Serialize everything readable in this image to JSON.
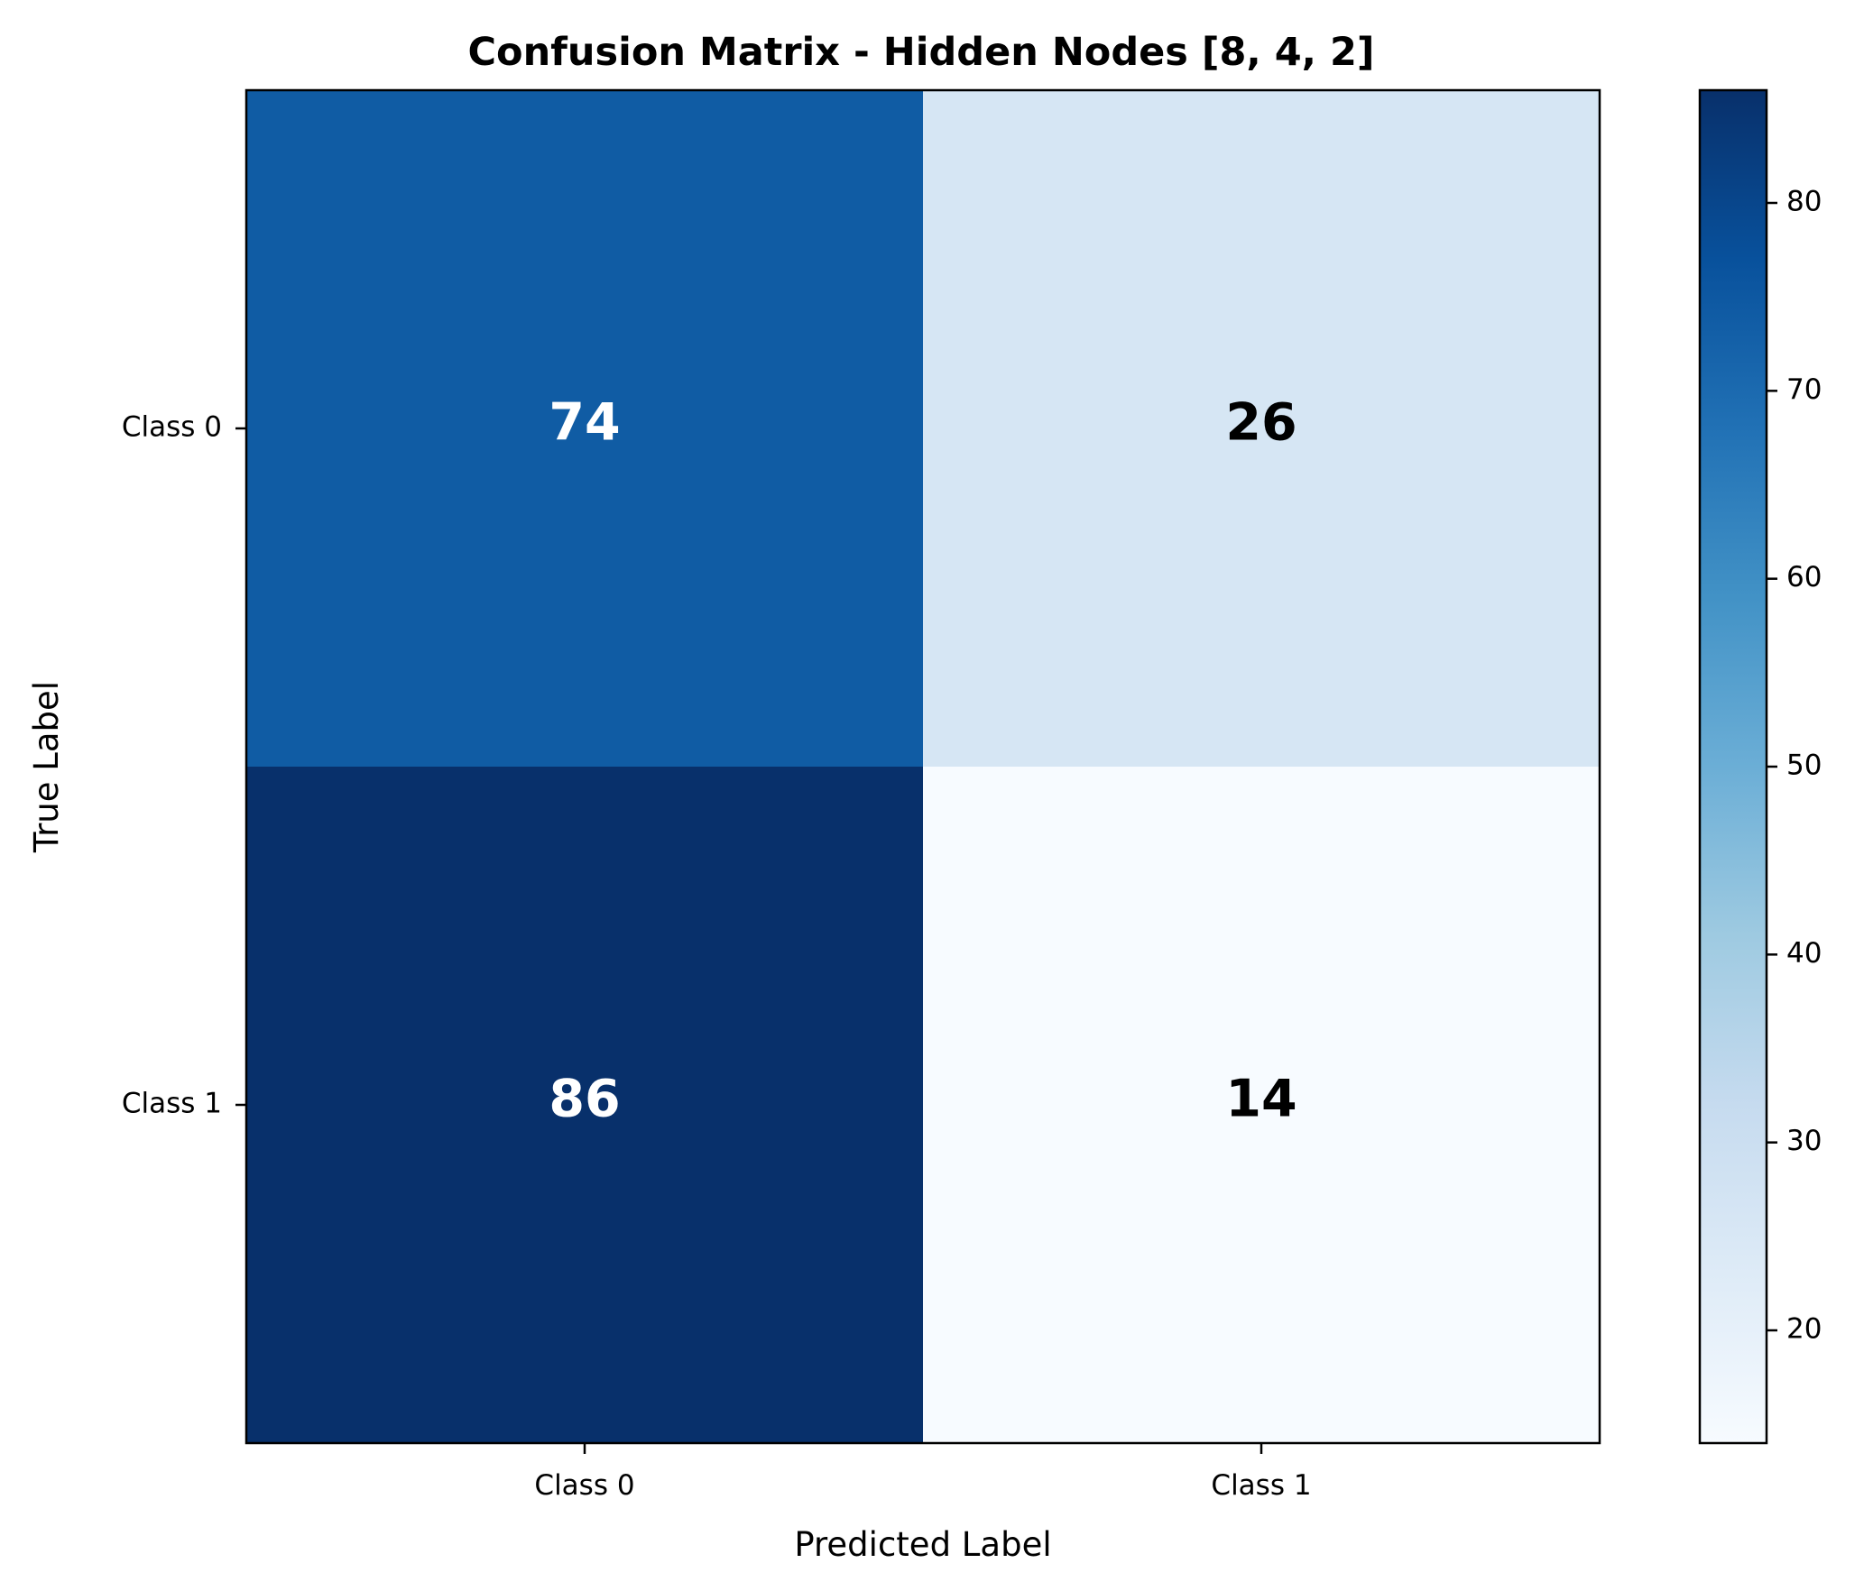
{
  "chart_data": {
    "type": "heatmap",
    "title": "Confusion Matrix - Hidden Nodes [8, 4, 2]",
    "xlabel": "Predicted Label",
    "ylabel": "True Label",
    "x_categories": [
      "Class 0",
      "Class 1"
    ],
    "y_categories": [
      "Class 0",
      "Class 1"
    ],
    "values": [
      [
        74,
        26
      ],
      [
        86,
        14
      ]
    ],
    "colormap": "Blues",
    "colorbar": {
      "range": [
        14,
        86
      ],
      "ticks": [
        20,
        30,
        40,
        50,
        60,
        70,
        80
      ],
      "tick_labels": [
        "20",
        "30",
        "40",
        "50",
        "60",
        "70",
        "80"
      ]
    },
    "grid": false
  }
}
